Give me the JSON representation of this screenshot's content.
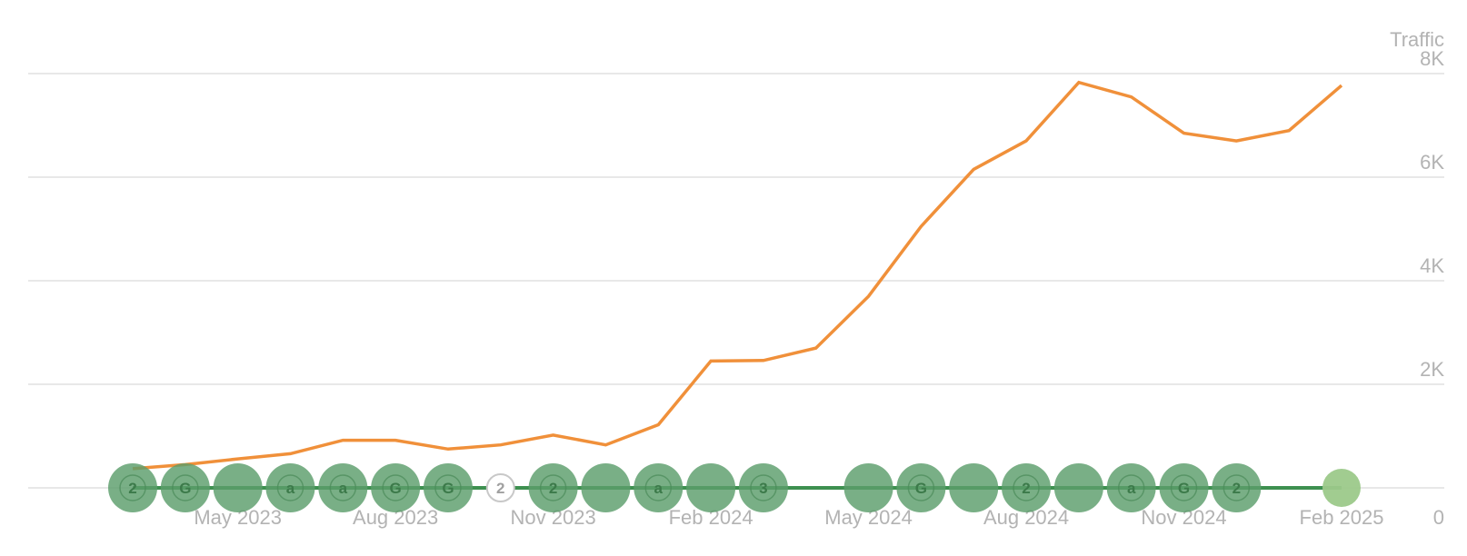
{
  "chart_data": {
    "type": "line",
    "ylabel": "Traffic",
    "ylim": [
      0,
      8000
    ],
    "yticks": [
      {
        "value": 0,
        "label": "0"
      },
      {
        "value": 2000,
        "label": "2K"
      },
      {
        "value": 4000,
        "label": "4K"
      },
      {
        "value": 6000,
        "label": "6K"
      },
      {
        "value": 8000,
        "label": "8K"
      }
    ],
    "xticks": [
      {
        "date": "2023-05-01",
        "label": "May 2023"
      },
      {
        "date": "2023-08-01",
        "label": "Aug 2023"
      },
      {
        "date": "2023-11-01",
        "label": "Nov 2023"
      },
      {
        "date": "2024-02-01",
        "label": "Feb 2024"
      },
      {
        "date": "2024-05-01",
        "label": "May 2024"
      },
      {
        "date": "2024-08-01",
        "label": "Aug 2024"
      },
      {
        "date": "2024-11-01",
        "label": "Nov 2024"
      },
      {
        "date": "2025-02-01",
        "label": "Feb 2025"
      }
    ],
    "xlim": [
      "2023-03-01",
      "2025-02-01"
    ],
    "grid": true,
    "series": [
      {
        "color": "#f0903a",
        "points": [
          {
            "x": "2023-03-01",
            "y": 370
          },
          {
            "x": "2023-04-01",
            "y": 450
          },
          {
            "x": "2023-05-01",
            "y": 560
          },
          {
            "x": "2023-06-01",
            "y": 660
          },
          {
            "x": "2023-07-01",
            "y": 920
          },
          {
            "x": "2023-08-01",
            "y": 920
          },
          {
            "x": "2023-09-01",
            "y": 750
          },
          {
            "x": "2023-10-01",
            "y": 830
          },
          {
            "x": "2023-11-01",
            "y": 1020
          },
          {
            "x": "2023-12-01",
            "y": 830
          },
          {
            "x": "2024-01-01",
            "y": 1220
          },
          {
            "x": "2024-02-01",
            "y": 2450
          },
          {
            "x": "2024-03-01",
            "y": 2460
          },
          {
            "x": "2024-04-01",
            "y": 2700
          },
          {
            "x": "2024-05-01",
            "y": 3700
          },
          {
            "x": "2024-06-01",
            "y": 5050
          },
          {
            "x": "2024-07-01",
            "y": 6150
          },
          {
            "x": "2024-08-01",
            "y": 6700
          },
          {
            "x": "2024-09-01",
            "y": 7830
          },
          {
            "x": "2024-10-01",
            "y": 7550
          },
          {
            "x": "2024-11-01",
            "y": 6850
          },
          {
            "x": "2024-12-01",
            "y": 6700
          },
          {
            "x": "2025-01-01",
            "y": 6900
          },
          {
            "x": "2025-02-01",
            "y": 7770
          }
        ]
      }
    ],
    "update_timeline": {
      "line_color": "#3e9050",
      "markers": [
        {
          "x": "2023-03-01",
          "label": "2",
          "style": "filled"
        },
        {
          "x": "2023-04-01",
          "label": "G",
          "style": "filled"
        },
        {
          "x": "2023-05-01",
          "label": "",
          "style": "filled"
        },
        {
          "x": "2023-06-01",
          "label": "a",
          "style": "filled"
        },
        {
          "x": "2023-07-01",
          "label": "a",
          "style": "filled"
        },
        {
          "x": "2023-08-01",
          "label": "G",
          "style": "filled"
        },
        {
          "x": "2023-09-01",
          "label": "G",
          "style": "filled"
        },
        {
          "x": "2023-10-01",
          "label": "2",
          "style": "outline"
        },
        {
          "x": "2023-11-01",
          "label": "2",
          "style": "filled"
        },
        {
          "x": "2023-12-01",
          "label": "",
          "style": "filled"
        },
        {
          "x": "2024-01-01",
          "label": "a",
          "style": "filled"
        },
        {
          "x": "2024-02-01",
          "label": "",
          "style": "filled"
        },
        {
          "x": "2024-03-01",
          "label": "3",
          "style": "filled"
        },
        {
          "x": "2024-05-01",
          "label": "",
          "style": "filled"
        },
        {
          "x": "2024-06-01",
          "label": "G",
          "style": "filled"
        },
        {
          "x": "2024-07-01",
          "label": "",
          "style": "filled"
        },
        {
          "x": "2024-08-01",
          "label": "2",
          "style": "filled"
        },
        {
          "x": "2024-09-01",
          "label": "",
          "style": "filled"
        },
        {
          "x": "2024-10-01",
          "label": "a",
          "style": "filled"
        },
        {
          "x": "2024-11-01",
          "label": "G",
          "style": "filled"
        },
        {
          "x": "2024-12-01",
          "label": "2",
          "style": "filled"
        },
        {
          "x": "2025-02-01",
          "label": "",
          "style": "light"
        }
      ]
    }
  }
}
